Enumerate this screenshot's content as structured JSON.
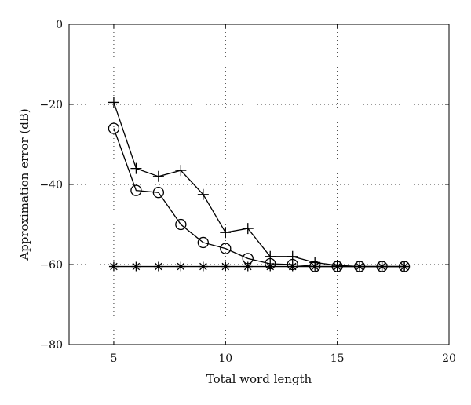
{
  "chart_data": {
    "type": "line",
    "title": "",
    "xlabel": "Total word length",
    "ylabel": "Approximation error (dB)",
    "xlim": [
      3,
      20
    ],
    "ylim": [
      -80,
      0
    ],
    "xticks": [
      5,
      10,
      15,
      20
    ],
    "yticks": [
      0,
      -20,
      -40,
      -60,
      -80
    ],
    "grid": true,
    "series": [
      {
        "marker": "plus",
        "x": [
          5,
          6,
          7,
          8,
          9,
          10,
          11,
          12,
          13,
          14,
          15,
          16,
          17,
          18
        ],
        "y": [
          -19.5,
          -36,
          -38,
          -36.5,
          -42.5,
          -52,
          -51,
          -58,
          -58,
          -59.5,
          -60.2,
          -60.5,
          -60.5,
          -60.5
        ]
      },
      {
        "marker": "circle",
        "x": [
          5,
          6,
          7,
          8,
          9,
          10,
          11,
          12,
          13,
          14,
          15,
          16,
          17,
          18
        ],
        "y": [
          -26,
          -41.5,
          -42,
          -50,
          -54.5,
          -56,
          -58.5,
          -59.8,
          -60,
          -60.5,
          -60.5,
          -60.5,
          -60.5,
          -60.5
        ]
      },
      {
        "marker": "asterisk",
        "x": [
          5,
          6,
          7,
          8,
          9,
          10,
          11,
          12,
          13,
          14,
          15,
          16,
          17,
          18
        ],
        "y": [
          -60.5,
          -60.5,
          -60.5,
          -60.5,
          -60.5,
          -60.5,
          -60.5,
          -60.5,
          -60.5,
          -60.5,
          -60.5,
          -60.5,
          -60.5,
          -60.5
        ]
      }
    ]
  }
}
